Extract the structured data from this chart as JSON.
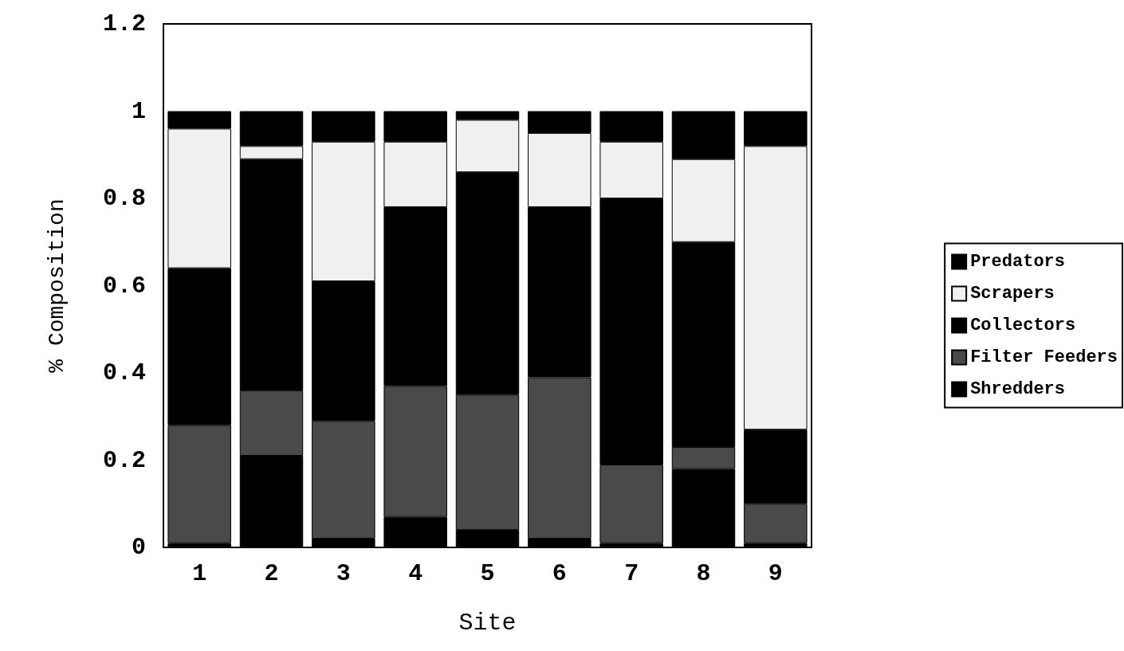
{
  "chart_data": {
    "type": "bar",
    "stacked": true,
    "xlabel": "Site",
    "ylabel": "% Composition",
    "categories": [
      "1",
      "2",
      "3",
      "4",
      "5",
      "6",
      "7",
      "8",
      "9"
    ],
    "series": [
      {
        "name": "Shredders",
        "color": "#000000",
        "values": [
          0.01,
          0.21,
          0.02,
          0.07,
          0.04,
          0.02,
          0.01,
          0.18,
          0.01
        ]
      },
      {
        "name": "Filter Feeders",
        "color": "#4a4a4a",
        "values": [
          0.27,
          0.15,
          0.27,
          0.3,
          0.31,
          0.37,
          0.18,
          0.05,
          0.09
        ]
      },
      {
        "name": "Collectors",
        "color": "#000000",
        "values": [
          0.36,
          0.53,
          0.32,
          0.41,
          0.51,
          0.39,
          0.61,
          0.47,
          0.17
        ]
      },
      {
        "name": "Scrapers",
        "color": "#f0f0f0",
        "values": [
          0.32,
          0.03,
          0.32,
          0.15,
          0.12,
          0.17,
          0.13,
          0.19,
          0.65
        ]
      },
      {
        "name": "Predators",
        "color": "#000000",
        "values": [
          0.04,
          0.08,
          0.07,
          0.07,
          0.02,
          0.05,
          0.07,
          0.11,
          0.08
        ]
      }
    ],
    "ylim": [
      0,
      1.2
    ],
    "yticks": [
      0,
      0.2,
      0.4,
      0.6,
      0.8,
      1,
      1.2
    ],
    "grid": false,
    "legend": "right"
  }
}
